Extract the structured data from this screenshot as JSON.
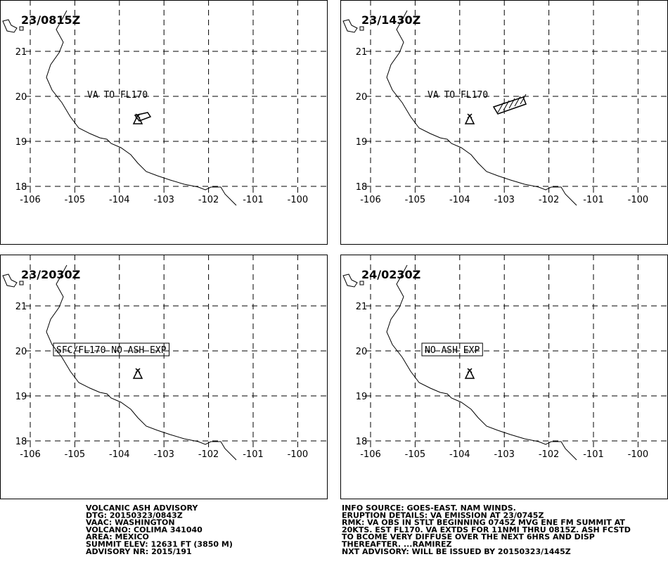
{
  "map": {
    "lon_ticks": [
      -106,
      -105,
      -104,
      -103,
      -102,
      -101,
      -100
    ],
    "lat_ticks": [
      21,
      20,
      19,
      18
    ]
  },
  "panels": [
    {
      "time": "23/0815Z",
      "label": "VA TO FL170"
    },
    {
      "time": "23/1430Z",
      "label": "VA TO FL170"
    },
    {
      "time": "23/2030Z",
      "label": "SFC/FL170 NO ASH EXP"
    },
    {
      "time": "24/0230Z",
      "label": "NO ASH EXP"
    }
  ],
  "advisory_left": [
    "VOLCANIC ASH ADVISORY",
    "DTG: 20150323/0843Z",
    "VAAC: WASHINGTON",
    "VOLCANO: COLIMA 341040",
    "AREA: MEXICO",
    "SUMMIT ELEV: 12631 FT (3850 M)",
    "ADVISORY NR: 2015/191"
  ],
  "advisory_right": [
    "INFO SOURCE: GOES-EAST. NAM WINDS.",
    "ERUPTION DETAILS: VA EMISSION AT 23/0745Z",
    "RMK: VA OBS IN STLT BEGINNING 0745Z MVG ENE FM SUMMIT AT",
    "20KTS. EST FL170. VA EXTDS FOR 11NMI THRU 0815Z. ASH FCSTD",
    "TO BCOME VERY DIFFUSE OVER THE NEXT 6HRS AND DISP",
    "THEREAFTER. ...RAMIREZ",
    "NXT ADVISORY: WILL BE ISSUED BY 20150323/1445Z"
  ]
}
